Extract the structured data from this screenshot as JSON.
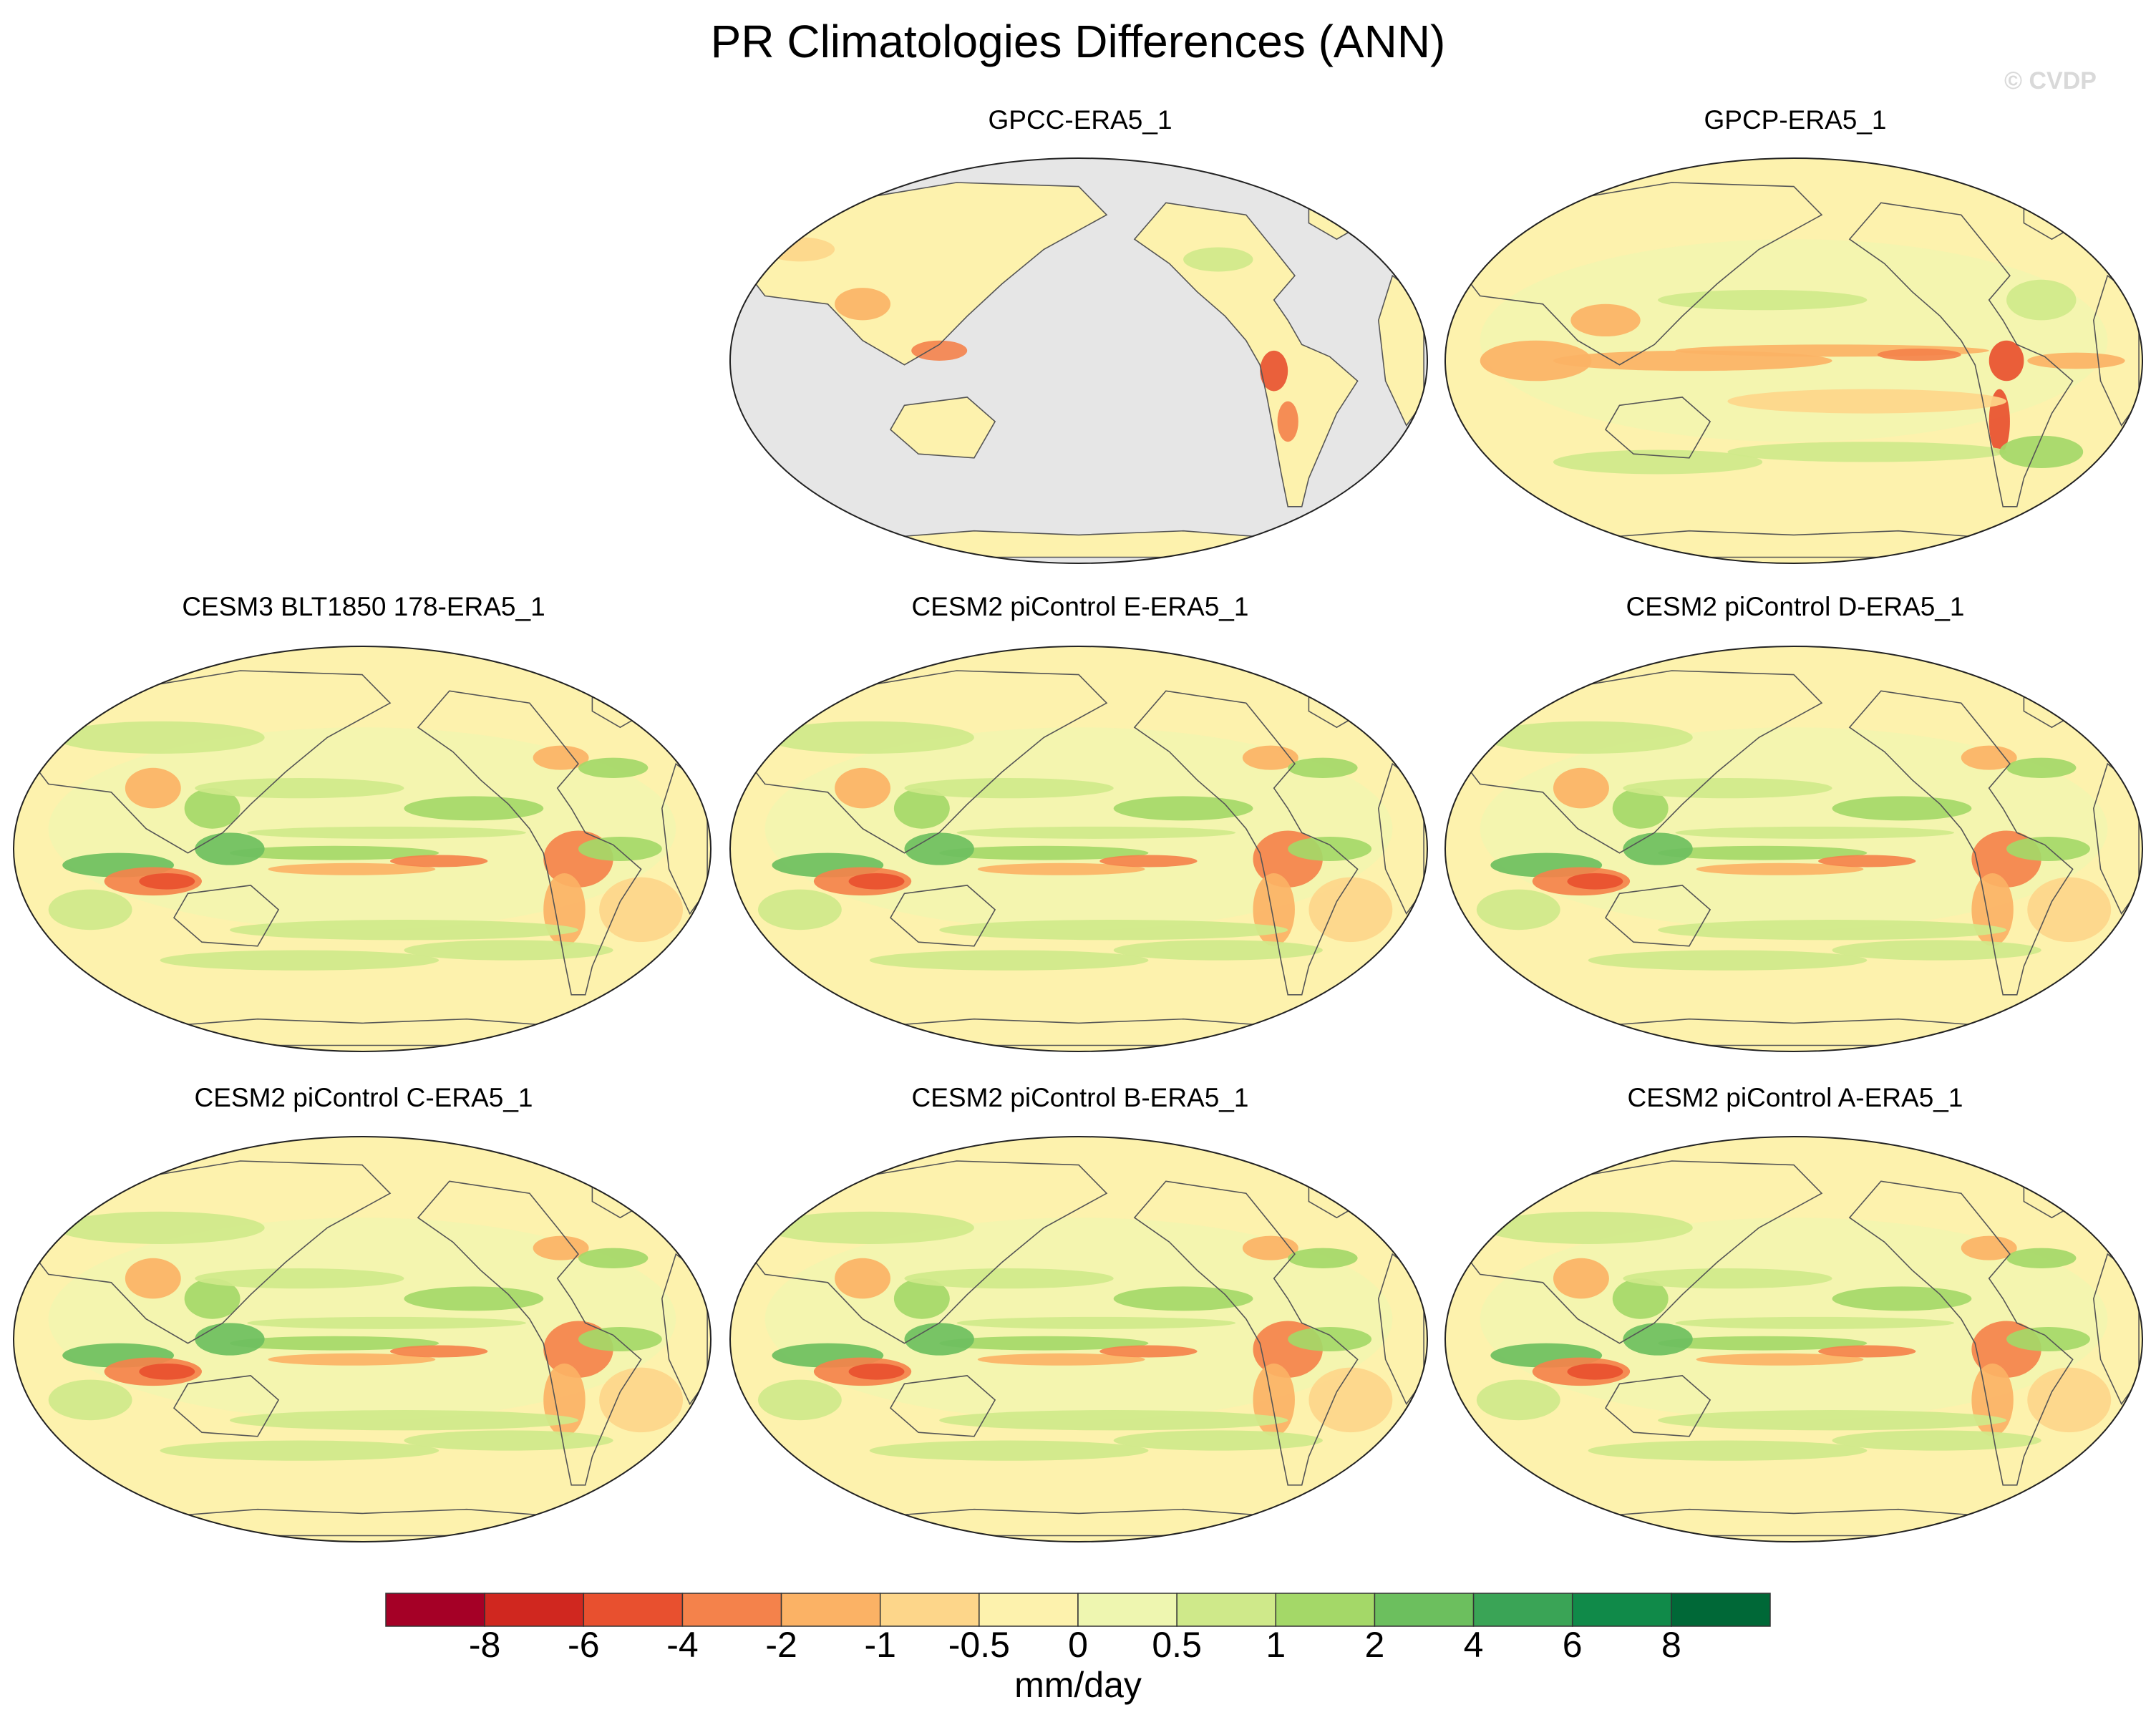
{
  "title": "PR Climatologies Differences (ANN)",
  "watermark": "© CVDP",
  "panels": [
    {
      "title": "GPCC-ERA5_1",
      "style": "land-only"
    },
    {
      "title": "GPCP-ERA5_1",
      "style": "obs"
    },
    {
      "title": "CESM3 BLT1850 178-ERA5_1",
      "style": "model"
    },
    {
      "title": "CESM2 piControl E-ERA5_1",
      "style": "model"
    },
    {
      "title": "CESM2 piControl D-ERA5_1",
      "style": "model"
    },
    {
      "title": "CESM2 piControl C-ERA5_1",
      "style": "model"
    },
    {
      "title": "CESM2 piControl B-ERA5_1",
      "style": "model"
    },
    {
      "title": "CESM2 piControl A-ERA5_1",
      "style": "model"
    }
  ],
  "colorbar": {
    "units": "mm/day",
    "tick_labels": [
      "-8",
      "-6",
      "-4",
      "-2",
      "-1",
      "-0.5",
      "0",
      "0.5",
      "1",
      "2",
      "4",
      "6",
      "8"
    ],
    "colors": [
      "#a50026",
      "#d0271f",
      "#e8502f",
      "#f4824b",
      "#fbb265",
      "#fdd68a",
      "#fdf2ad",
      "#eef6b0",
      "#cfe98a",
      "#a4d868",
      "#6cbf5e",
      "#3aa456",
      "#108a49",
      "#006837"
    ]
  },
  "missing_color": "#e6e6e6"
}
